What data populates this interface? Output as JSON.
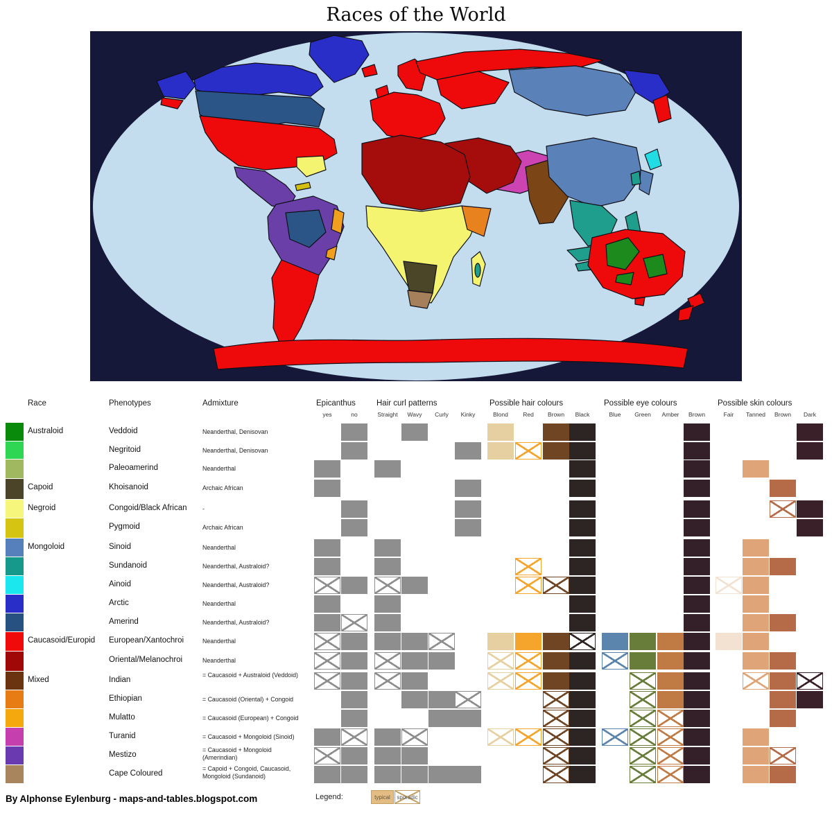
{
  "title": "Races of the World",
  "attribution": "By Alphonse Eylenburg - maps-and-tables.blogspot.com",
  "legend": {
    "label": "Legend:",
    "typical": "typical",
    "sporadic": "sporadic"
  },
  "header": {
    "race": "Race",
    "phenotypes": "Phenotypes",
    "admixture": "Admixture",
    "groups": [
      {
        "label": "Epicanthus",
        "cols": [
          {
            "key": "yes",
            "label": "yes"
          },
          {
            "key": "no",
            "label": "no"
          }
        ]
      },
      {
        "label": "Hair curl patterns",
        "cols": [
          {
            "key": "straight",
            "label": "Straight"
          },
          {
            "key": "wavy",
            "label": "Wavy"
          },
          {
            "key": "curly",
            "label": "Curly"
          },
          {
            "key": "kinky",
            "label": "Kinky"
          }
        ]
      },
      {
        "label": "Possible hair colours",
        "cols": [
          {
            "key": "blond",
            "label": "Blond"
          },
          {
            "key": "red",
            "label": "Red"
          },
          {
            "key": "brown_hair",
            "label": "Brown"
          },
          {
            "key": "black",
            "label": "Black"
          }
        ]
      },
      {
        "label": "Possible eye colours",
        "cols": [
          {
            "key": "blue",
            "label": "Blue"
          },
          {
            "key": "green",
            "label": "Green"
          },
          {
            "key": "amber",
            "label": "Amber"
          },
          {
            "key": "brown_eye",
            "label": "Brown"
          }
        ]
      },
      {
        "label": "Possible skin colours",
        "cols": [
          {
            "key": "fair",
            "label": "Fair"
          },
          {
            "key": "tanned",
            "label": "Tanned"
          },
          {
            "key": "brown_skin",
            "label": "Brown"
          },
          {
            "key": "dark",
            "label": "Dark"
          }
        ]
      }
    ]
  },
  "palette": {
    "cell_colors": {
      "yes": "#8e8e8e",
      "no": "#8e8e8e",
      "straight": "#8e8e8e",
      "wavy": "#8e8e8e",
      "curly": "#8e8e8e",
      "kinky": "#8e8e8e",
      "blond": "#e6d0a2",
      "red": "#f5a42c",
      "brown_hair": "#6f4523",
      "black": "#2d2424",
      "blue": "#5c85ae",
      "green": "#697d3b",
      "amber": "#c07b45",
      "brown_eye": "#342028",
      "fair": "#f3e2d2",
      "tanned": "#dfa478",
      "brown_skin": "#b56a48",
      "dark": "#3a2129"
    },
    "legend_typical_fill": "#e2bc82",
    "legend_border": "#c59f5f"
  },
  "map": {
    "space": "#161839",
    "ocean": "#c3ddee",
    "regions": {
      "arctic_blue": "#2a2ec8",
      "amerind_steel": "#2b5586",
      "european_red": "#ee0a0a",
      "oriental_dark_red": "#a50d0d",
      "mestizo_purple": "#6a3fa8",
      "mulatto_amber": "#f0a01e",
      "turanid_magenta": "#cc43b2",
      "sinoid_steel": "#5b82b8",
      "sundanoid_teal": "#1f9e8e",
      "ainoid_cyan": "#22dce4",
      "indian_brown": "#7c4515",
      "congoid_yellow": "#f4f470",
      "pygmoid_gold": "#d2bf10",
      "ethiopian_orange": "#e8821e",
      "capoid_olive": "#4c4628",
      "cape_tan": "#a5805a",
      "australoid_green": "#1d8a1d",
      "negritoid_green": "#35d455"
    }
  },
  "rows": [
    {
      "race": "Australoid",
      "swatch": "#0a8a0a",
      "phenotype": "Veddoid",
      "admixture": "Neanderthal, Denisovan",
      "marks": {
        "no": "typical",
        "wavy": "typical",
        "blond": "typical",
        "brown_hair": "typical",
        "black": "typical",
        "brown_eye": "typical",
        "dark": "typical"
      }
    },
    {
      "race": null,
      "swatch": "#2ed654",
      "phenotype": "Negritoid",
      "admixture": "Neanderthal, Denisovan",
      "marks": {
        "no": "typical",
        "kinky": "typical",
        "blond": "typical",
        "red": "sporadic",
        "brown_hair": "typical",
        "black": "typical",
        "brown_eye": "typical",
        "dark": "typical"
      }
    },
    {
      "race": null,
      "swatch": "#a0b860",
      "phenotype": "Paleoamerind",
      "admixture": "Neanderthal",
      "marks": {
        "yes": "typical",
        "straight": "typical",
        "black": "typical",
        "brown_eye": "typical",
        "tanned": "typical"
      }
    },
    {
      "race": "Capoid",
      "swatch": "#4c4428",
      "phenotype": "Khoisanoid",
      "admixture": "Archaic African",
      "marks": {
        "yes": "typical",
        "kinky": "typical",
        "black": "typical",
        "brown_eye": "typical",
        "brown_skin": "typical"
      }
    },
    {
      "race": "Negroid",
      "swatch": "#f6f67d",
      "phenotype": "Congoid/Black African",
      "admixture": "-",
      "marks": {
        "no": "typical",
        "kinky": "typical",
        "black": "typical",
        "brown_eye": "typical",
        "brown_skin": "sporadic",
        "dark": "typical"
      }
    },
    {
      "race": null,
      "swatch": "#d6c413",
      "phenotype": "Pygmoid",
      "admixture": "Archaic African",
      "marks": {
        "no": "typical",
        "kinky": "typical",
        "black": "typical",
        "brown_eye": "typical",
        "dark": "typical"
      }
    },
    {
      "race": "Mongoloid",
      "swatch": "#5580bb",
      "phenotype": "Sinoid",
      "admixture": "Neanderthal",
      "marks": {
        "yes": "typical",
        "straight": "typical",
        "black": "typical",
        "brown_eye": "typical",
        "tanned": "typical"
      }
    },
    {
      "race": null,
      "swatch": "#16988a",
      "phenotype": "Sundanoid",
      "admixture": "Neanderthal, Australoid?",
      "marks": {
        "yes": "typical",
        "straight": "typical",
        "red": "sporadic",
        "black": "typical",
        "brown_eye": "typical",
        "tanned": "typical",
        "brown_skin": "typical"
      }
    },
    {
      "race": null,
      "swatch": "#1ae8ee",
      "phenotype": "Ainoid",
      "admixture": "Neanderthal, Australoid?",
      "marks": {
        "yes": "sporadic",
        "no": "typical",
        "straight": "sporadic",
        "wavy": "typical",
        "red": "sporadic",
        "brown_hair": "sporadic",
        "black": "typical",
        "brown_eye": "typical",
        "fair": "sporadic",
        "tanned": "typical"
      }
    },
    {
      "race": null,
      "swatch": "#2a2ec8",
      "phenotype": "Arctic",
      "admixture": "Neanderthal",
      "marks": {
        "yes": "typical",
        "straight": "typical",
        "black": "typical",
        "brown_eye": "typical",
        "tanned": "typical"
      }
    },
    {
      "race": null,
      "swatch": "#275181",
      "phenotype": "Amerind",
      "admixture": "Neanderthal, Australoid?",
      "marks": {
        "yes": "typical",
        "no": "sporadic",
        "straight": "typical",
        "black": "typical",
        "brown_eye": "typical",
        "tanned": "typical",
        "brown_skin": "typical"
      }
    },
    {
      "race": "Caucasoid/Europid",
      "swatch": "#f00a0a",
      "phenotype": "European/Xantochroi",
      "admixture": "Neanderthal",
      "marks": {
        "yes": "sporadic",
        "no": "typical",
        "straight": "typical",
        "wavy": "typical",
        "curly": "sporadic",
        "blond": "typical",
        "red": "typical",
        "brown_hair": "typical",
        "black": "sporadic",
        "blue": "typical",
        "green": "typical",
        "amber": "typical",
        "brown_eye": "typical",
        "fair": "typical",
        "tanned": "typical"
      }
    },
    {
      "race": null,
      "swatch": "#a00808",
      "phenotype": "Oriental/Melanochroi",
      "admixture": "Neanderthal",
      "marks": {
        "yes": "sporadic",
        "no": "typical",
        "straight": "sporadic",
        "wavy": "typical",
        "curly": "typical",
        "blond": "sporadic",
        "red": "sporadic",
        "brown_hair": "typical",
        "black": "typical",
        "blue": "sporadic",
        "green": "typical",
        "amber": "typical",
        "brown_eye": "typical",
        "tanned": "typical",
        "brown_skin": "typical"
      }
    },
    {
      "race": "Mixed",
      "swatch": "#6a3410",
      "phenotype": "Indian",
      "admixture": "= Caucasoid + Australoid (Veddoid)",
      "marks": {
        "yes": "sporadic",
        "no": "typical",
        "straight": "sporadic",
        "wavy": "typical",
        "blond": "sporadic",
        "red": "sporadic",
        "brown_hair": "typical",
        "black": "typical",
        "green": "sporadic",
        "amber": "typical",
        "brown_eye": "typical",
        "tanned": "sporadic",
        "brown_skin": "typical",
        "dark": "sporadic"
      }
    },
    {
      "race": null,
      "swatch": "#e87c14",
      "phenotype": "Ethiopian",
      "admixture": "= Caucasoid (Oriental) + Congoid",
      "marks": {
        "no": "typical",
        "wavy": "typical",
        "curly": "typical",
        "kinky": "sporadic",
        "brown_hair": "sporadic",
        "black": "typical",
        "green": "sporadic",
        "amber": "typical",
        "brown_eye": "typical",
        "brown_skin": "typical",
        "dark": "typical"
      }
    },
    {
      "race": null,
      "swatch": "#f5a80d",
      "phenotype": "Mulatto",
      "admixture": "= Caucasoid (European) + Congoid",
      "marks": {
        "no": "typical",
        "curly": "typical",
        "kinky": "typical",
        "brown_hair": "sporadic",
        "black": "typical",
        "green": "sporadic",
        "amber": "sporadic",
        "brown_eye": "typical",
        "brown_skin": "typical"
      }
    },
    {
      "race": null,
      "swatch": "#c53fae",
      "phenotype": "Turanid",
      "admixture": "= Caucasoid + Mongoloid (Sinoid)",
      "marks": {
        "yes": "typical",
        "no": "sporadic",
        "straight": "typical",
        "wavy": "sporadic",
        "blond": "sporadic",
        "red": "sporadic",
        "brown_hair": "sporadic",
        "black": "typical",
        "blue": "sporadic",
        "green": "sporadic",
        "amber": "sporadic",
        "brown_eye": "typical",
        "tanned": "typical"
      }
    },
    {
      "race": null,
      "swatch": "#6a3ab0",
      "phenotype": "Mestizo",
      "admixture": "= Caucasoid + Mongoloid (Amerindian)",
      "marks": {
        "yes": "sporadic",
        "no": "typical",
        "straight": "typical",
        "wavy": "typical",
        "brown_hair": "sporadic",
        "black": "typical",
        "green": "sporadic",
        "amber": "sporadic",
        "brown_eye": "typical",
        "tanned": "typical",
        "brown_skin": "sporadic"
      }
    },
    {
      "race": null,
      "swatch": "#a8855c",
      "phenotype": "Cape Coloured",
      "admixture": "= Capoid + Congoid, Caucasoid, Mongoloid (Sundanoid)",
      "marks": {
        "yes": "typical",
        "no": "typical",
        "straight": "typical",
        "wavy": "typical",
        "curly": "typical",
        "kinky": "typical",
        "brown_hair": "sporadic",
        "black": "typical",
        "green": "sporadic",
        "amber": "sporadic",
        "brown_eye": "typical",
        "tanned": "typical",
        "brown_skin": "typical"
      }
    }
  ]
}
